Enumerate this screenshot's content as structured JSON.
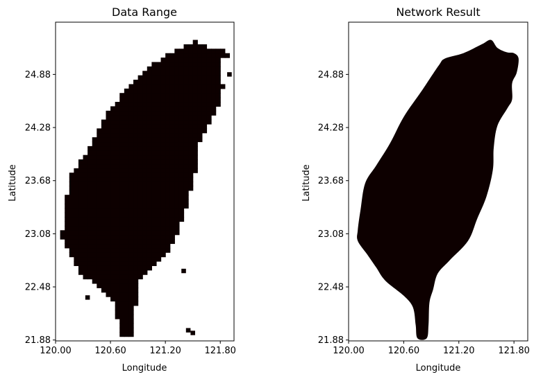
{
  "chart_data": [
    {
      "type": "heatmap",
      "title": "Data Range",
      "xlabel": "Longitude",
      "ylabel": "Latitude",
      "xlim": [
        120.0,
        121.95
      ],
      "ylim": [
        21.87,
        25.47
      ],
      "xticks": [
        120.0,
        120.6,
        121.2,
        121.8
      ],
      "xtick_labels": [
        "120.00",
        "120.60",
        "121.20",
        "121.80"
      ],
      "yticks": [
        21.88,
        22.48,
        23.08,
        23.68,
        24.28,
        24.88
      ],
      "ytick_labels": [
        "21.88",
        "22.48",
        "23.08",
        "23.68",
        "24.28",
        "24.88"
      ],
      "fill_color": "#0d0000",
      "rendering": "pixelated grid",
      "region_outline": [
        [
          121.53,
          25.27
        ],
        [
          121.6,
          25.23
        ],
        [
          121.7,
          25.18
        ],
        [
          121.82,
          25.15
        ],
        [
          121.95,
          25.1
        ],
        [
          121.83,
          25.08
        ],
        [
          121.8,
          25.0
        ],
        [
          121.83,
          24.75
        ],
        [
          121.8,
          24.6
        ],
        [
          121.75,
          24.45
        ],
        [
          121.6,
          24.2
        ],
        [
          121.55,
          24.0
        ],
        [
          121.52,
          23.75
        ],
        [
          121.45,
          23.45
        ],
        [
          121.35,
          23.15
        ],
        [
          121.25,
          22.9
        ],
        [
          121.05,
          22.72
        ],
        [
          120.92,
          22.55
        ],
        [
          120.88,
          22.35
        ],
        [
          120.85,
          22.0
        ],
        [
          120.83,
          21.9
        ],
        [
          120.72,
          21.9
        ],
        [
          120.7,
          22.0
        ],
        [
          120.62,
          22.35
        ],
        [
          120.45,
          22.5
        ],
        [
          120.3,
          22.6
        ],
        [
          120.2,
          22.78
        ],
        [
          120.1,
          22.97
        ],
        [
          120.05,
          23.05
        ],
        [
          120.12,
          23.2
        ],
        [
          120.12,
          23.45
        ],
        [
          120.15,
          23.75
        ],
        [
          120.35,
          24.0
        ],
        [
          120.5,
          24.35
        ],
        [
          120.68,
          24.6
        ],
        [
          120.9,
          24.85
        ],
        [
          121.05,
          25.0
        ],
        [
          121.25,
          25.12
        ],
        [
          121.4,
          25.2
        ]
      ],
      "outliers": [
        [
          121.9,
          24.88
        ],
        [
          121.4,
          22.66
        ],
        [
          120.35,
          22.36
        ],
        [
          121.45,
          21.99
        ],
        [
          121.5,
          21.96
        ]
      ]
    },
    {
      "type": "heatmap",
      "title": "Network Result",
      "xlabel": "Longitude",
      "ylabel": "Latitude",
      "xlim": [
        120.0,
        121.95
      ],
      "ylim": [
        21.87,
        25.47
      ],
      "xticks": [
        120.0,
        120.6,
        121.2,
        121.8
      ],
      "xtick_labels": [
        "120.00",
        "120.60",
        "121.20",
        "121.80"
      ],
      "yticks": [
        21.88,
        22.48,
        23.08,
        23.68,
        24.28,
        24.88
      ],
      "ytick_labels": [
        "21.88",
        "22.48",
        "23.08",
        "23.68",
        "24.28",
        "24.88"
      ],
      "fill_color": "#0d0000",
      "rendering": "smooth",
      "region_outline": [
        [
          121.55,
          25.27
        ],
        [
          121.62,
          25.18
        ],
        [
          121.72,
          25.13
        ],
        [
          121.8,
          25.12
        ],
        [
          121.85,
          25.06
        ],
        [
          121.83,
          24.9
        ],
        [
          121.78,
          24.78
        ],
        [
          121.78,
          24.6
        ],
        [
          121.73,
          24.5
        ],
        [
          121.62,
          24.3
        ],
        [
          121.58,
          24.05
        ],
        [
          121.57,
          23.8
        ],
        [
          121.5,
          23.5
        ],
        [
          121.4,
          23.25
        ],
        [
          121.3,
          23.0
        ],
        [
          121.1,
          22.78
        ],
        [
          120.97,
          22.63
        ],
        [
          120.92,
          22.45
        ],
        [
          120.88,
          22.3
        ],
        [
          120.87,
          22.05
        ],
        [
          120.85,
          21.9
        ],
        [
          120.75,
          21.9
        ],
        [
          120.73,
          22.05
        ],
        [
          120.7,
          22.25
        ],
        [
          120.6,
          22.38
        ],
        [
          120.4,
          22.55
        ],
        [
          120.3,
          22.7
        ],
        [
          120.2,
          22.85
        ],
        [
          120.1,
          23.0
        ],
        [
          120.1,
          23.12
        ],
        [
          120.13,
          23.35
        ],
        [
          120.18,
          23.65
        ],
        [
          120.3,
          23.85
        ],
        [
          120.45,
          24.1
        ],
        [
          120.6,
          24.4
        ],
        [
          120.8,
          24.7
        ],
        [
          120.98,
          24.98
        ],
        [
          121.05,
          25.06
        ],
        [
          121.25,
          25.12
        ],
        [
          121.45,
          25.22
        ]
      ]
    }
  ]
}
